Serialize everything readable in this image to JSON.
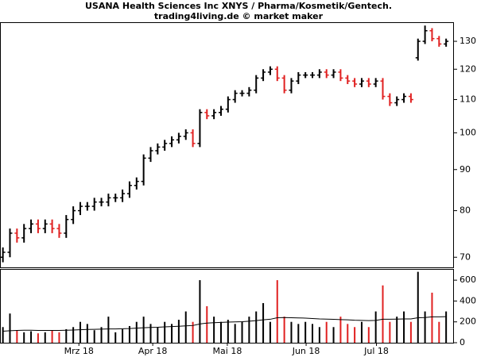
{
  "chart_data": [
    {
      "type": "ohlc",
      "title": "USANA Health Sciences Inc XNYS / Pharma/Kosmetik/Gentech.",
      "subtitle": "trading4living.de © market maker",
      "log_scale": true,
      "up_color": "#000000",
      "down_color": "#e02020",
      "x": [
        0,
        1,
        2,
        3,
        4,
        5,
        6,
        7,
        8,
        9,
        10,
        11,
        12,
        13,
        14,
        15,
        16,
        17,
        18,
        19,
        20,
        21,
        22,
        23,
        24,
        25,
        26,
        27,
        28,
        29,
        30,
        31,
        32,
        33,
        34,
        35,
        36,
        37,
        38,
        39,
        40,
        41,
        42,
        43,
        44,
        45,
        46,
        47,
        48,
        49,
        50,
        51,
        52,
        53,
        54,
        55,
        56,
        57,
        58,
        59,
        60,
        61,
        62,
        63
      ],
      "open": [
        70,
        71,
        75,
        74,
        76,
        77,
        76,
        77,
        76,
        75,
        78,
        80,
        81,
        81,
        82,
        82,
        83,
        83,
        84,
        86,
        87,
        93,
        95,
        96,
        97,
        98,
        99,
        100,
        97,
        106,
        105,
        106,
        107,
        110,
        112,
        112,
        113,
        117,
        119,
        120,
        117,
        113,
        116,
        118,
        118,
        118,
        119,
        118,
        119,
        117,
        116,
        115,
        116,
        115,
        116,
        111,
        109,
        110,
        111,
        124,
        130,
        134,
        131,
        129
      ],
      "high": [
        72,
        76,
        76,
        77,
        78,
        78,
        78,
        78,
        77,
        79,
        81,
        82,
        82,
        83,
        83,
        84,
        84,
        85,
        87,
        88,
        94,
        96,
        97,
        98,
        99,
        100,
        101,
        101,
        107,
        107,
        107,
        108,
        111,
        113,
        113,
        114,
        118,
        120,
        121,
        121,
        118,
        117,
        119,
        119,
        119,
        120,
        120,
        120,
        120,
        118,
        117,
        117,
        117,
        117,
        117,
        112,
        111,
        112,
        112,
        131,
        136,
        135,
        132,
        131
      ],
      "low": [
        69,
        70,
        73,
        73,
        75,
        75,
        75,
        75,
        74,
        74,
        77,
        79,
        80,
        80,
        81,
        81,
        82,
        82,
        83,
        85,
        86,
        92,
        94,
        95,
        96,
        97,
        98,
        96,
        96,
        104,
        104,
        105,
        106,
        109,
        111,
        111,
        112,
        116,
        118,
        116,
        112,
        112,
        115,
        117,
        117,
        117,
        117,
        117,
        116,
        115,
        114,
        114,
        114,
        114,
        110,
        108,
        108,
        109,
        109,
        123,
        129,
        130,
        128,
        128
      ],
      "close": [
        71,
        75,
        74,
        76,
        77,
        76,
        77,
        76,
        75,
        78,
        80,
        81,
        81,
        82,
        82,
        83,
        83,
        84,
        86,
        87,
        93,
        95,
        96,
        97,
        98,
        99,
        100,
        97,
        106,
        105,
        106,
        107,
        110,
        112,
        112,
        113,
        117,
        119,
        120,
        117,
        113,
        116,
        118,
        118,
        118,
        119,
        118,
        119,
        117,
        116,
        115,
        116,
        115,
        116,
        111,
        109,
        110,
        111,
        110,
        130,
        134,
        131,
        129,
        130
      ],
      "xlim": [
        -0.3,
        64
      ],
      "ylim": [
        68,
        137
      ],
      "yticks": [
        70,
        80,
        90,
        100,
        110,
        120,
        130
      ],
      "xticks": [
        {
          "value": 10.8,
          "label": "Mrz 18"
        },
        {
          "value": 21.3,
          "label": "Apr 18"
        },
        {
          "value": 31.9,
          "label": "Mai 18"
        },
        {
          "value": 43.1,
          "label": "Jun 18"
        },
        {
          "value": 53.1,
          "label": "Jul 18"
        }
      ]
    },
    {
      "type": "volume",
      "ylim": [
        0,
        700
      ],
      "yticks": [
        0,
        200,
        400,
        600
      ],
      "ma_color": "#000000",
      "values": [
        150,
        280,
        120,
        100,
        110,
        90,
        100,
        120,
        100,
        130,
        150,
        200,
        180,
        120,
        150,
        250,
        100,
        130,
        160,
        200,
        250,
        180,
        150,
        200,
        180,
        220,
        300,
        200,
        600,
        350,
        250,
        200,
        220,
        180,
        200,
        250,
        300,
        380,
        200,
        600,
        250,
        200,
        180,
        200,
        180,
        150,
        200,
        150,
        250,
        180,
        150,
        200,
        150,
        300,
        550,
        200,
        250,
        300,
        200,
        680,
        300,
        480,
        200,
        300
      ],
      "ma": [
        110,
        115,
        118,
        120,
        120,
        118,
        118,
        118,
        118,
        120,
        122,
        125,
        127,
        128,
        130,
        132,
        132,
        134,
        136,
        140,
        144,
        146,
        148,
        152,
        155,
        158,
        162,
        165,
        180,
        188,
        192,
        195,
        198,
        200,
        202,
        206,
        212,
        220,
        225,
        240,
        242,
        240,
        238,
        236,
        232,
        228,
        226,
        224,
        222,
        220,
        216,
        214,
        212,
        214,
        225,
        225,
        226,
        228,
        228,
        240,
        242,
        248,
        248,
        250
      ]
    }
  ]
}
